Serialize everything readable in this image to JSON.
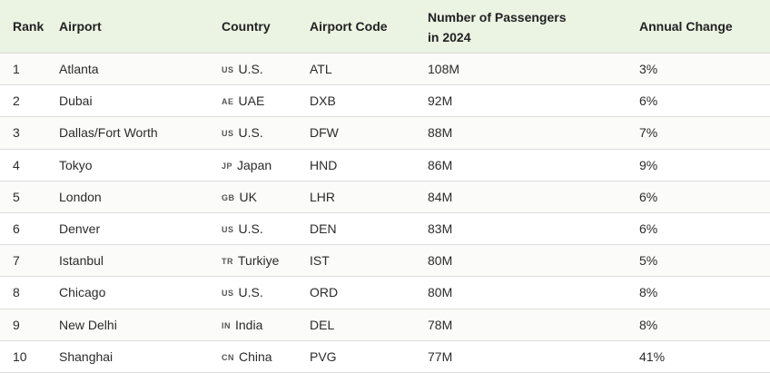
{
  "header": {
    "rank": "Rank",
    "airport": "Airport",
    "country": "Country",
    "code": "Airport Code",
    "passengers_line1": "Number of Passengers",
    "passengers_line2": "in 2024",
    "change": "Annual Change"
  },
  "rows": [
    {
      "rank": "1",
      "airport": "Atlanta",
      "flag": "US",
      "country": "U.S.",
      "code": "ATL",
      "passengers": "108M",
      "change": "3%"
    },
    {
      "rank": "2",
      "airport": "Dubai",
      "flag": "AE",
      "country": "UAE",
      "code": "DXB",
      "passengers": "92M",
      "change": "6%"
    },
    {
      "rank": "3",
      "airport": "Dallas/Fort Worth",
      "flag": "US",
      "country": "U.S.",
      "code": "DFW",
      "passengers": "88M",
      "change": "7%"
    },
    {
      "rank": "4",
      "airport": "Tokyo",
      "flag": "JP",
      "country": "Japan",
      "code": "HND",
      "passengers": "86M",
      "change": "9%"
    },
    {
      "rank": "5",
      "airport": "London",
      "flag": "GB",
      "country": "UK",
      "code": "LHR",
      "passengers": "84M",
      "change": "6%"
    },
    {
      "rank": "6",
      "airport": "Denver",
      "flag": "US",
      "country": "U.S.",
      "code": "DEN",
      "passengers": "83M",
      "change": "6%"
    },
    {
      "rank": "7",
      "airport": "Istanbul",
      "flag": "TR",
      "country": "Turkiye",
      "code": "IST",
      "passengers": "80M",
      "change": "5%"
    },
    {
      "rank": "8",
      "airport": "Chicago",
      "flag": "US",
      "country": "U.S.",
      "code": "ORD",
      "passengers": "80M",
      "change": "8%"
    },
    {
      "rank": "9",
      "airport": "New Delhi",
      "flag": "IN",
      "country": "India",
      "code": "DEL",
      "passengers": "78M",
      "change": "8%"
    },
    {
      "rank": "10",
      "airport": "Shanghai",
      "flag": "CN",
      "country": "China",
      "code": "PVG",
      "passengers": "77M",
      "change": "41%"
    }
  ]
}
